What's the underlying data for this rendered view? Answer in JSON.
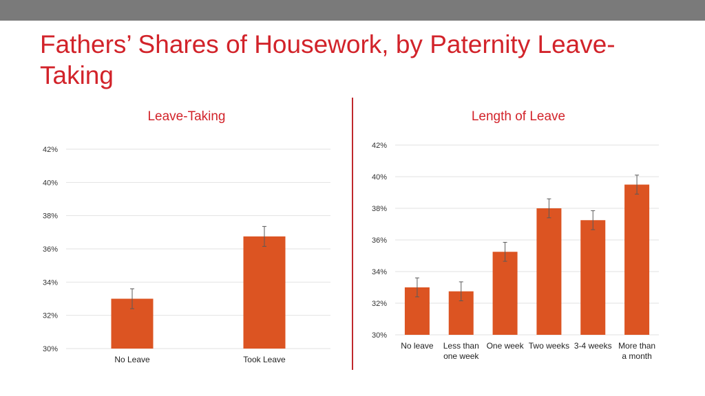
{
  "slide": {
    "title": "Fathers’ Shares of Housework, by Paternity Leave-Taking"
  },
  "colors": {
    "accent": "#d2232a",
    "bar": "#dc5422",
    "topbar": "#7a7a7a"
  },
  "chart_data": [
    {
      "type": "bar",
      "title": "Leave-Taking",
      "xlabel": "",
      "ylabel": "",
      "ylim": [
        30,
        42
      ],
      "yticks": [
        30,
        32,
        34,
        36,
        38,
        40,
        42
      ],
      "ytick_labels": [
        "30%",
        "32%",
        "34%",
        "36%",
        "38%",
        "40%",
        "42%"
      ],
      "grid": true,
      "categories": [
        "No Leave",
        "Took Leave"
      ],
      "values": [
        33.0,
        36.75
      ],
      "errors": [
        0.6,
        0.6
      ]
    },
    {
      "type": "bar",
      "title": "Length of Leave",
      "xlabel": "",
      "ylabel": "",
      "ylim": [
        30,
        42
      ],
      "yticks": [
        30,
        32,
        34,
        36,
        38,
        40,
        42
      ],
      "ytick_labels": [
        "30%",
        "32%",
        "34%",
        "36%",
        "38%",
        "40%",
        "42%"
      ],
      "grid": true,
      "categories": [
        "No leave",
        "Less than one week",
        "One week",
        "Two weeks",
        "3-4 weeks",
        "More than a month"
      ],
      "category_lines": [
        [
          "No leave"
        ],
        [
          "Less than",
          "one week"
        ],
        [
          "One week"
        ],
        [
          "Two weeks"
        ],
        [
          "3-4 weeks"
        ],
        [
          "More than",
          "a month"
        ]
      ],
      "values": [
        33.0,
        32.75,
        35.25,
        38.0,
        37.25,
        39.5
      ],
      "errors": [
        0.6,
        0.6,
        0.6,
        0.6,
        0.6,
        0.6
      ]
    }
  ]
}
